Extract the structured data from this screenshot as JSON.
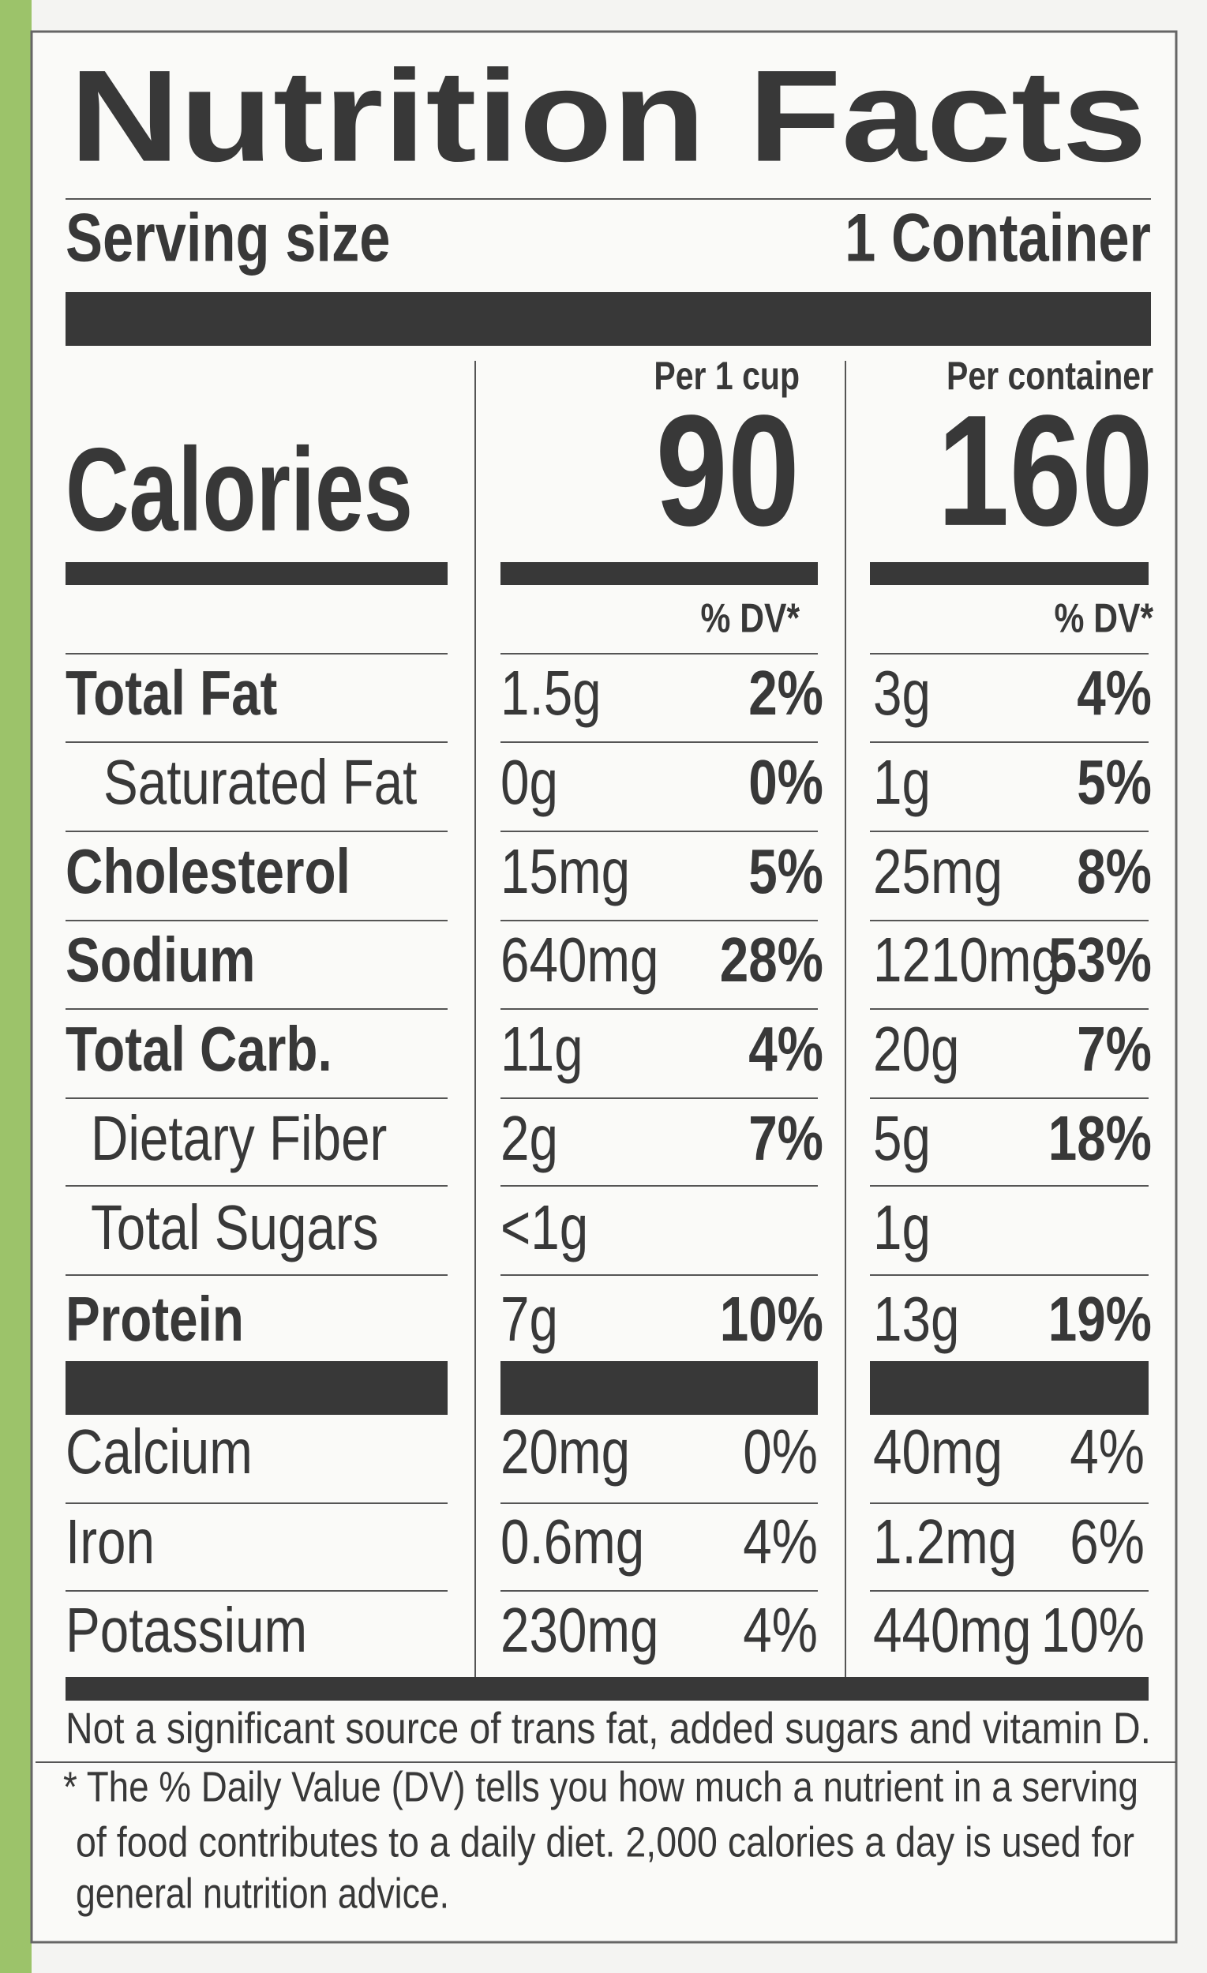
{
  "header": {
    "title": "Nutrition Facts",
    "serving_size_label": "Serving size",
    "serving_size": "1 Container"
  },
  "calories_label": "Calories",
  "columns": [
    {
      "heading": "Per 1 cup",
      "calories": "90",
      "dv_heading": "% DV*"
    },
    {
      "heading": "Per container",
      "calories": "160",
      "dv_heading": "% DV*"
    }
  ],
  "rows": [
    {
      "name": "Total Fat",
      "amount_cup": "1.5g",
      "dv_cup": "2%",
      "amount_container": "3g",
      "dv_container": "4%"
    },
    {
      "name": "Saturated Fat",
      "amount_cup": "0g",
      "dv_cup": "0%",
      "amount_container": "1g",
      "dv_container": "5%"
    },
    {
      "name": "Cholesterol",
      "amount_cup": "15mg",
      "dv_cup": "5%",
      "amount_container": "25mg",
      "dv_container": "8%"
    },
    {
      "name": "Sodium",
      "amount_cup": "640mg",
      "dv_cup": "28%",
      "amount_container": "1210mg",
      "dv_container": "53%"
    },
    {
      "name": "Total Carb.",
      "amount_cup": "11g",
      "dv_cup": "4%",
      "amount_container": "20g",
      "dv_container": "7%"
    },
    {
      "name": "Dietary Fiber",
      "amount_cup": "2g",
      "dv_cup": "7%",
      "amount_container": "5g",
      "dv_container": "18%"
    },
    {
      "name": "Total Sugars",
      "amount_cup": "<1g",
      "amount_container": "1g"
    },
    {
      "name": "Protein",
      "amount_cup": "7g",
      "dv_cup": "10%",
      "amount_container": "13g",
      "dv_container": "19%"
    },
    {
      "name": "Calcium",
      "amount_cup": "20mg",
      "dv_cup": "0%",
      "amount_container": "40mg",
      "dv_container": "4%"
    },
    {
      "name": "Iron",
      "amount_cup": "0.6mg",
      "dv_cup": "4%",
      "amount_container": "1.2mg",
      "dv_container": "6%"
    },
    {
      "name": "Potassium",
      "amount_cup": "230mg",
      "dv_cup": "4%",
      "amount_container": "440mg",
      "dv_container": "10%"
    }
  ],
  "footnote": {
    "statement": "Not a significant source of trans fat, added sugars and vitamin D.",
    "lines": [
      "* The % Daily Value (DV) tells you how much a nutrient in a serving",
      "of food contributes to a daily diet. 2,000 calories a day is used for",
      "general nutrition advice."
    ]
  }
}
